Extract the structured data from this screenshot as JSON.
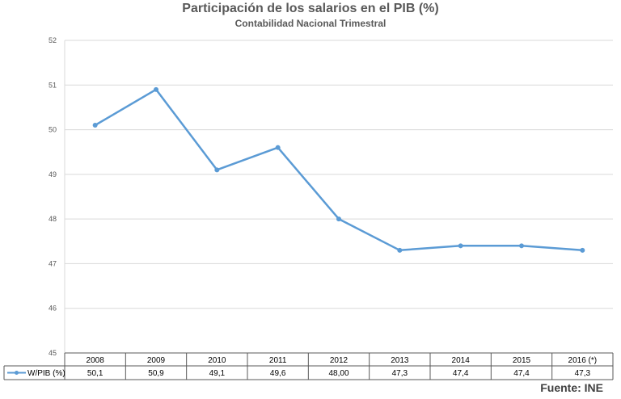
{
  "chart_data": {
    "type": "line",
    "title": "Participación de los salarios en el PIB (%)",
    "subtitle": "Contabilidad Nacional Trimestral",
    "categories": [
      "2008",
      "2009",
      "2010",
      "2011",
      "2012",
      "2013",
      "2014",
      "2015",
      "2016 (*)"
    ],
    "series": [
      {
        "name": "W/PIB (%)",
        "values": [
          50.1,
          50.9,
          49.1,
          49.6,
          48.0,
          47.3,
          47.4,
          47.4,
          47.3
        ],
        "value_labels": [
          "50,1",
          "50,9",
          "49,1",
          "49,6",
          "48,00",
          "47,3",
          "47,4",
          "47,4",
          "47,3"
        ],
        "color": "#5B9BD5"
      }
    ],
    "ylim": [
      45,
      52
    ],
    "yticks": [
      45,
      46,
      47,
      48,
      49,
      50,
      51,
      52
    ],
    "grid": true,
    "legend": "data-table-below"
  },
  "source": "Fuente: INE"
}
